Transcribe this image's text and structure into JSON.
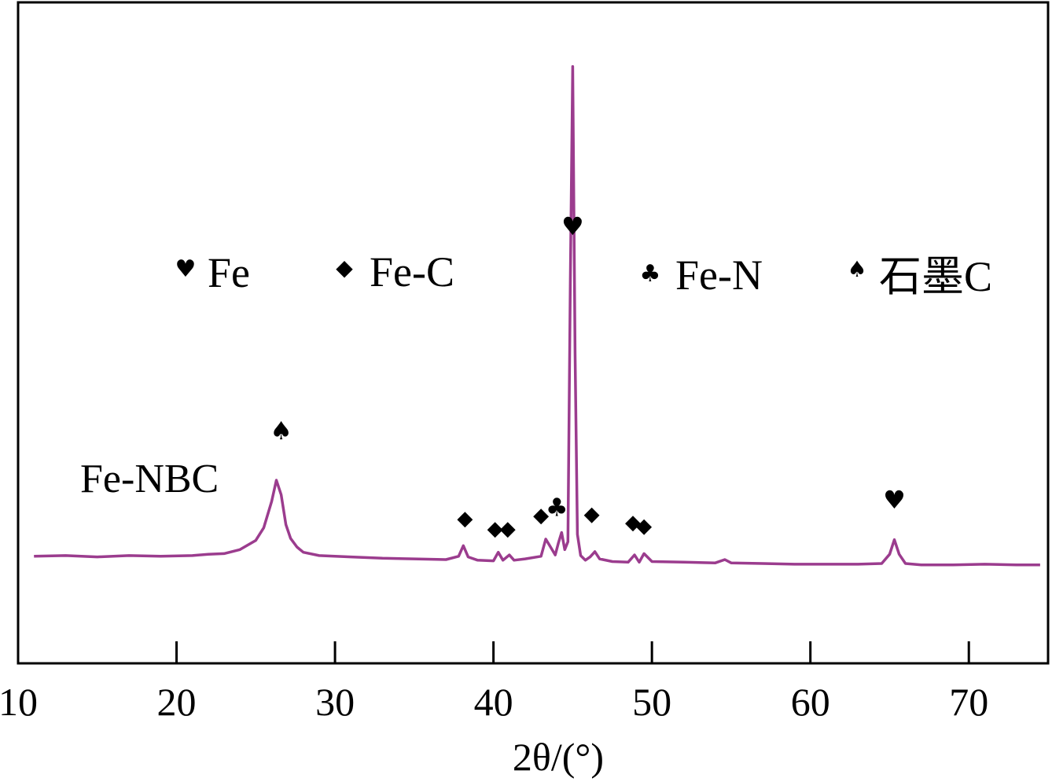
{
  "chart_data": {
    "type": "line",
    "xlabel": "2θ/(°)",
    "ylabel": "",
    "xlim": [
      10,
      75
    ],
    "ylim": [
      0,
      100
    ],
    "x_ticks": [
      10,
      20,
      30,
      40,
      50,
      60,
      70
    ],
    "x_tick_labels": [
      "10",
      "20",
      "30",
      "40",
      "50",
      "60",
      "70"
    ],
    "y_axis_ticks_shown": false,
    "grid": false,
    "line_color": "#9b3c8e",
    "series": [
      {
        "name": "Fe-NBC",
        "x": [
          11,
          13,
          15,
          17,
          19,
          21,
          22,
          23,
          24,
          25,
          25.5,
          26,
          26.3,
          26.6,
          26.9,
          27.2,
          27.6,
          28,
          29,
          31,
          33,
          35,
          37,
          37.8,
          38.1,
          38.4,
          39,
          40,
          40.3,
          40.6,
          41,
          41.3,
          42,
          43,
          43.3,
          43.6,
          43.9,
          44.1,
          44.3,
          44.5,
          44.7,
          44.85,
          45,
          45.15,
          45.3,
          45.5,
          45.8,
          46.1,
          46.4,
          46.7,
          47.5,
          48.5,
          48.9,
          49.2,
          49.5,
          50,
          52,
          54,
          54.6,
          55,
          57,
          59,
          61,
          63,
          64.5,
          65,
          65.3,
          65.6,
          66,
          67,
          69,
          71,
          73,
          74.5
        ],
        "y": [
          16.2,
          16.3,
          16.1,
          16.3,
          16.2,
          16.3,
          16.5,
          16.6,
          17.2,
          18.6,
          20.5,
          24.5,
          27.7,
          25.5,
          21.0,
          18.9,
          17.6,
          16.8,
          16.3,
          16.1,
          15.9,
          15.8,
          15.7,
          16.2,
          17.8,
          16.1,
          15.6,
          15.5,
          16.8,
          15.6,
          16.4,
          15.6,
          15.8,
          16.2,
          18.8,
          17.6,
          16.4,
          18.2,
          19.8,
          17.2,
          18.4,
          58.0,
          90.3,
          47.0,
          19.5,
          16.3,
          15.6,
          16.1,
          16.9,
          15.8,
          15.4,
          15.3,
          16.4,
          15.3,
          16.6,
          15.4,
          15.3,
          15.2,
          15.7,
          15.2,
          15.1,
          15.0,
          15.0,
          15.0,
          15.1,
          16.5,
          18.7,
          16.5,
          15.1,
          14.9,
          14.9,
          15.0,
          14.9,
          14.9
        ]
      }
    ],
    "legend": {
      "placement": "top",
      "entries": [
        {
          "icon": "heart-icon",
          "symbol": "♥",
          "label": "Fe"
        },
        {
          "icon": "diamond-icon",
          "symbol": "◆",
          "label": "Fe-C"
        },
        {
          "icon": "club-icon",
          "symbol": "♣",
          "label": "Fe-N"
        },
        {
          "icon": "spade-icon",
          "symbol": "♠",
          "label": "石墨C"
        }
      ]
    },
    "peak_markers": [
      {
        "x": 26.6,
        "y": 35.1,
        "icon": "spade-icon",
        "symbol": "♠",
        "phase": "石墨C"
      },
      {
        "x": 38.2,
        "y": 22.1,
        "icon": "diamond-icon",
        "symbol": "◆",
        "phase": "Fe-C"
      },
      {
        "x": 40.1,
        "y": 20.6,
        "icon": "diamond-icon",
        "symbol": "◆",
        "phase": "Fe-C"
      },
      {
        "x": 40.9,
        "y": 20.6,
        "icon": "diamond-icon",
        "symbol": "◆",
        "phase": "Fe-C"
      },
      {
        "x": 43.0,
        "y": 22.6,
        "icon": "diamond-icon",
        "symbol": "◆",
        "phase": "Fe-C"
      },
      {
        "x": 44.0,
        "y": 23.5,
        "icon": "club-icon",
        "symbol": "♣",
        "phase": "Fe-N"
      },
      {
        "x": 46.2,
        "y": 22.8,
        "icon": "diamond-icon",
        "symbol": "◆",
        "phase": "Fe-C"
      },
      {
        "x": 48.8,
        "y": 21.5,
        "icon": "diamond-icon",
        "symbol": "◆",
        "phase": "Fe-C"
      },
      {
        "x": 49.5,
        "y": 21.0,
        "icon": "diamond-icon",
        "symbol": "◆",
        "phase": "Fe-C"
      },
      {
        "x": 45.0,
        "y": 66.0,
        "icon": "heart-icon",
        "symbol": "♥",
        "phase": "Fe"
      },
      {
        "x": 65.3,
        "y": 24.6,
        "icon": "heart-icon",
        "symbol": "♥",
        "phase": "Fe"
      }
    ]
  }
}
